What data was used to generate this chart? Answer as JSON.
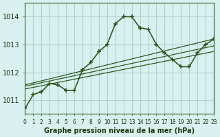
{
  "title": "",
  "xlabel": "Graphe pression niveau de la mer (hPa)",
  "background_color": "#d8f0f0",
  "grid_color": "#b0d0d0",
  "line_color": "#2d5a1b",
  "ylim": [
    1010.5,
    1014.5
  ],
  "xlim": [
    0,
    23
  ],
  "yticks": [
    1011,
    1012,
    1013,
    1014
  ],
  "xticks": [
    0,
    1,
    2,
    3,
    4,
    5,
    6,
    7,
    8,
    9,
    10,
    11,
    12,
    13,
    14,
    15,
    16,
    17,
    18,
    19,
    20,
    21,
    22,
    23
  ],
  "series1_x": [
    0,
    1,
    2,
    3,
    4,
    5,
    6,
    7,
    8,
    9,
    10,
    11,
    12,
    13,
    14,
    15,
    16,
    17,
    18,
    19,
    20,
    21,
    22,
    23
  ],
  "series1_y": [
    1010.7,
    1011.2,
    1011.3,
    1011.6,
    1011.55,
    1011.35,
    1011.35,
    1012.1,
    1012.35,
    1012.75,
    1013.0,
    1013.75,
    1014.0,
    1014.0,
    1013.6,
    1013.55,
    1013.0,
    1012.7,
    1012.45,
    1012.2,
    1012.2,
    1012.7,
    1013.0,
    1013.2
  ],
  "series2_x": [
    0,
    23
  ],
  "series2_y": [
    1011.55,
    1013.2
  ],
  "series3_x": [
    0,
    23
  ],
  "series3_y": [
    1011.4,
    1012.75
  ],
  "series4_x": [
    0,
    23
  ],
  "series4_y": [
    1011.5,
    1012.95
  ]
}
